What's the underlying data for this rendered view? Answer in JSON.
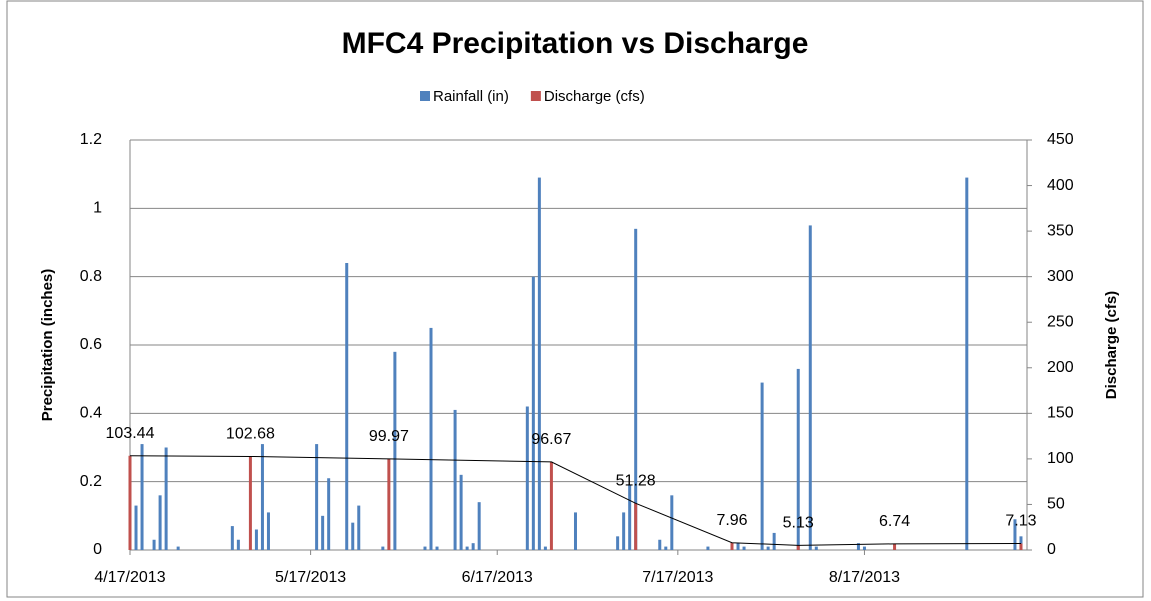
{
  "chart_data": {
    "type": "bar",
    "title": "MFC4 Precipitation vs Discharge",
    "y_label": "Precipitation (inches)",
    "y2_label": "Discharge (cfs)",
    "xlim": [
      "2013-04-17",
      "2013-09-13"
    ],
    "xticks": [
      {
        "value": "2013-04-17",
        "label": "4/17/2013"
      },
      {
        "value": "2013-05-17",
        "label": "5/17/2013"
      },
      {
        "value": "2013-06-17",
        "label": "6/17/2013"
      },
      {
        "value": "2013-07-17",
        "label": "7/17/2013"
      },
      {
        "value": "2013-08-17",
        "label": "8/17/2013"
      }
    ],
    "ylim": [
      0,
      1.2
    ],
    "yticks": [
      0,
      0.2,
      0.4,
      0.6,
      0.8,
      1,
      1.2
    ],
    "y2lim": [
      0,
      450
    ],
    "y2ticks": [
      0,
      50,
      100,
      150,
      200,
      250,
      300,
      350,
      400,
      450
    ],
    "grid": true,
    "legend": "top",
    "series": [
      {
        "name": "Rainfall (in)",
        "color": "#4f81bd",
        "axis": "y",
        "x": [
          "2013-04-18",
          "2013-04-19",
          "2013-04-21",
          "2013-04-22",
          "2013-04-23",
          "2013-04-25",
          "2013-05-04",
          "2013-05-05",
          "2013-05-08",
          "2013-05-09",
          "2013-05-10",
          "2013-05-18",
          "2013-05-19",
          "2013-05-20",
          "2013-05-23",
          "2013-05-24",
          "2013-05-25",
          "2013-05-29",
          "2013-05-31",
          "2013-06-05",
          "2013-06-06",
          "2013-06-07",
          "2013-06-10",
          "2013-06-11",
          "2013-06-12",
          "2013-06-13",
          "2013-06-14",
          "2013-06-22",
          "2013-06-23",
          "2013-06-24",
          "2013-06-25",
          "2013-06-30",
          "2013-07-07",
          "2013-07-08",
          "2013-07-09",
          "2013-07-10",
          "2013-07-14",
          "2013-07-15",
          "2013-07-16",
          "2013-07-22",
          "2013-07-27",
          "2013-07-28",
          "2013-07-31",
          "2013-08-01",
          "2013-08-02",
          "2013-08-06",
          "2013-08-08",
          "2013-08-09",
          "2013-08-16",
          "2013-08-17",
          "2013-09-03",
          "2013-09-11",
          "2013-09-12"
        ],
        "values": [
          0.13,
          0.31,
          0.03,
          0.16,
          0.3,
          0.01,
          0.07,
          0.03,
          0.06,
          0.31,
          0.11,
          0.31,
          0.1,
          0.21,
          0.84,
          0.08,
          0.13,
          0.01,
          0.58,
          0.01,
          0.65,
          0.01,
          0.41,
          0.22,
          0.01,
          0.02,
          0.14,
          0.42,
          0.8,
          1.09,
          0.01,
          0.11,
          0.04,
          0.11,
          0.19,
          0.94,
          0.03,
          0.01,
          0.16,
          0.01,
          0.02,
          0.01,
          0.49,
          0.01,
          0.05,
          0.53,
          0.95,
          0.01,
          0.02,
          0.01,
          1.09,
          0.09,
          0.04
        ]
      },
      {
        "name": "Discharge (cfs)",
        "color": "#c0504d",
        "axis": "y2",
        "line_color": "#000000",
        "x": [
          "2013-04-17",
          "2013-05-07",
          "2013-05-30",
          "2013-06-26",
          "2013-07-10",
          "2013-07-26",
          "2013-08-06",
          "2013-08-22",
          "2013-09-12"
        ],
        "values": [
          103.44,
          102.68,
          99.97,
          96.67,
          51.28,
          7.96,
          5.13,
          6.74,
          7.13
        ]
      }
    ]
  }
}
